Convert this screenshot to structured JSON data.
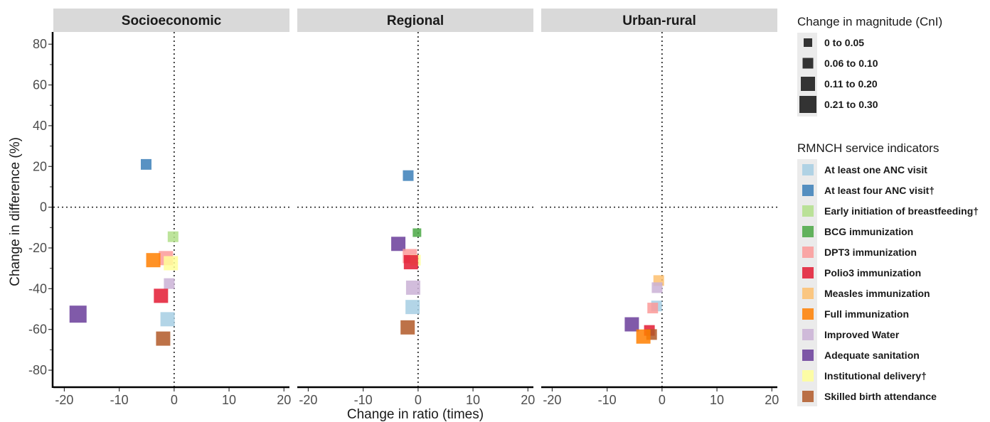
{
  "chart_data": {
    "type": "scatter",
    "panels": [
      "Socioeconomic",
      "Regional",
      "Urban-rural"
    ],
    "xlabel": "Change in ratio (times)",
    "ylabel": "Change in difference (%)",
    "xlim": [
      -22,
      21
    ],
    "ylim": [
      -88,
      86
    ],
    "xticks": [
      -20,
      -10,
      0,
      10,
      20
    ],
    "xtick_labels": [
      "-20",
      "-10",
      "0",
      "10",
      "20"
    ],
    "yticks": [
      80,
      60,
      40,
      20,
      0,
      -20,
      -40,
      -60,
      -80
    ],
    "ytick_labels": [
      "80",
      "60",
      "40",
      "20",
      "0",
      "-20",
      "-40",
      "-60",
      "-80"
    ],
    "reference_lines": {
      "x": 0,
      "y": 0
    },
    "size_legend": {
      "title": "Change in magnitude (CnI)",
      "items": [
        {
          "label": "0 to 0.05",
          "size_level": 1
        },
        {
          "label": "0.06 to 0.10",
          "size_level": 2
        },
        {
          "label": "0.11 to 0.20",
          "size_level": 3
        },
        {
          "label": "0.21 to 0.30",
          "size_level": 4
        }
      ]
    },
    "color_legend": {
      "title": "RMNCH service indicators",
      "items": [
        {
          "label": "At least one ANC visit",
          "color": "#a6cee3"
        },
        {
          "label": "At least four ANC visit†",
          "color": "#3b7fb9"
        },
        {
          "label": "Early initiation of breastfeeding†",
          "color": "#b2df8a"
        },
        {
          "label": "BCG immunization",
          "color": "#4aa844"
        },
        {
          "label": "DPT3 immunization",
          "color": "#fb9a99"
        },
        {
          "label": "Polio3 immunization",
          "color": "#e31a33"
        },
        {
          "label": "Measles immunization",
          "color": "#fdbf6f"
        },
        {
          "label": "Full immunization",
          "color": "#ff7f00"
        },
        {
          "label": "Improved Water",
          "color": "#cab2d6"
        },
        {
          "label": "Adequate sanitation",
          "color": "#6a3d9a"
        },
        {
          "label": "Institutional delivery†",
          "color": "#ffff99"
        },
        {
          "label": "Skilled birth attendance",
          "color": "#b15928"
        }
      ]
    },
    "points": [
      {
        "panel": 0,
        "indicator": 1,
        "x": -5.1,
        "y": 21,
        "size_level": 2
      },
      {
        "panel": 0,
        "indicator": 2,
        "x": -0.2,
        "y": -14.5,
        "size_level": 2
      },
      {
        "panel": 0,
        "indicator": 4,
        "x": -1.5,
        "y": -25,
        "size_level": 3
      },
      {
        "panel": 0,
        "indicator": 10,
        "x": -0.6,
        "y": -27.5,
        "size_level": 3
      },
      {
        "panel": 0,
        "indicator": 7,
        "x": -3.8,
        "y": -26,
        "size_level": 3
      },
      {
        "panel": 0,
        "indicator": 8,
        "x": -0.9,
        "y": -37.5,
        "size_level": 2
      },
      {
        "panel": 0,
        "indicator": 5,
        "x": -2.4,
        "y": -43.5,
        "size_level": 3
      },
      {
        "panel": 0,
        "indicator": 9,
        "x": -17.5,
        "y": -52.5,
        "size_level": 4
      },
      {
        "panel": 0,
        "indicator": 0,
        "x": -1.2,
        "y": -55,
        "size_level": 3
      },
      {
        "panel": 0,
        "indicator": 11,
        "x": -2.0,
        "y": -64.5,
        "size_level": 3
      },
      {
        "panel": 1,
        "indicator": 1,
        "x": -1.8,
        "y": 15.5,
        "size_level": 2
      },
      {
        "panel": 1,
        "indicator": 3,
        "x": -0.2,
        "y": -12.5,
        "size_level": 1
      },
      {
        "panel": 1,
        "indicator": 9,
        "x": -3.6,
        "y": -18,
        "size_level": 3
      },
      {
        "panel": 1,
        "indicator": 4,
        "x": -1.5,
        "y": -24,
        "size_level": 3
      },
      {
        "panel": 1,
        "indicator": 10,
        "x": -0.5,
        "y": -26,
        "size_level": 2
      },
      {
        "panel": 1,
        "indicator": 5,
        "x": -1.3,
        "y": -27,
        "size_level": 3
      },
      {
        "panel": 1,
        "indicator": 8,
        "x": -0.9,
        "y": -39.5,
        "size_level": 3
      },
      {
        "panel": 1,
        "indicator": 0,
        "x": -1.0,
        "y": -49,
        "size_level": 3
      },
      {
        "panel": 1,
        "indicator": 11,
        "x": -1.9,
        "y": -59,
        "size_level": 3
      },
      {
        "panel": 2,
        "indicator": 6,
        "x": -0.6,
        "y": -36,
        "size_level": 2
      },
      {
        "panel": 2,
        "indicator": 8,
        "x": -0.9,
        "y": -39.5,
        "size_level": 2
      },
      {
        "panel": 2,
        "indicator": 0,
        "x": -1.0,
        "y": -48.5,
        "size_level": 2
      },
      {
        "panel": 2,
        "indicator": 4,
        "x": -1.7,
        "y": -49.5,
        "size_level": 2
      },
      {
        "panel": 2,
        "indicator": 9,
        "x": -5.5,
        "y": -57.5,
        "size_level": 3
      },
      {
        "panel": 2,
        "indicator": 5,
        "x": -2.3,
        "y": -60.5,
        "size_level": 2
      },
      {
        "panel": 2,
        "indicator": 11,
        "x": -1.9,
        "y": -62.5,
        "size_level": 2
      },
      {
        "panel": 2,
        "indicator": 7,
        "x": -3.4,
        "y": -63.5,
        "size_level": 3
      }
    ]
  }
}
